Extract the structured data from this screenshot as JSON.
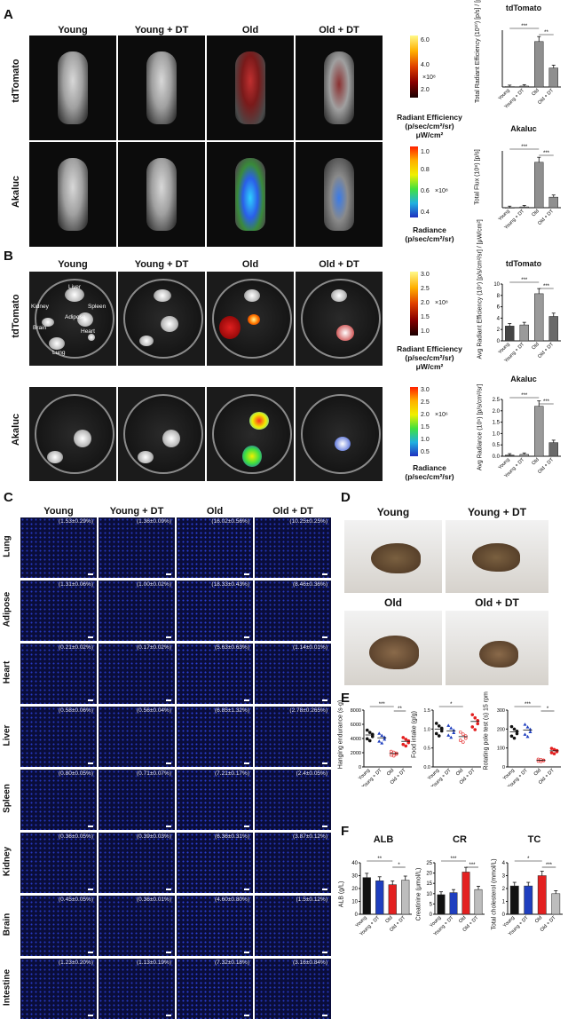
{
  "panels": [
    "A",
    "B",
    "C",
    "D",
    "E",
    "F"
  ],
  "groups": [
    "Young",
    "Young + DT",
    "Old",
    "Old + DT"
  ],
  "panel_A": {
    "rows": [
      "tdTomato",
      "Akaluc"
    ],
    "scale1": {
      "ticks": [
        "6.0",
        "4.0",
        "2.0"
      ],
      "exp": "×10⁸",
      "caption1": "Radiant Efficiency",
      "caption2": "(p/sec/cm²/sr)",
      "caption3": "μW/cm²"
    },
    "scale2": {
      "ticks": [
        "1.0",
        "0.8",
        "0.6",
        "0.4"
      ],
      "exp": "×10⁸",
      "caption1": "Radiance",
      "caption2": "(p/sec/cm²/sr)"
    },
    "chart1": {
      "title": "tdTomato",
      "ylabel": "Total Radiant Efficiency (10¹⁰) [p/s] / [μW/cm²]",
      "sig": [
        "***",
        "**"
      ]
    },
    "chart2": {
      "title": "Akaluc",
      "ylabel": "Total Flux (10⁸) [p/s]",
      "sig": [
        "***",
        "***"
      ]
    }
  },
  "panel_B": {
    "rows": [
      "tdTomato",
      "Akaluc"
    ],
    "organs": [
      "Liver",
      "Kidney",
      "Spleen",
      "Adipose",
      "Brain",
      "Heart",
      "Lung"
    ],
    "scale1": {
      "ticks": [
        "3.0",
        "2.5",
        "2.0",
        "1.5",
        "1.0"
      ],
      "exp": "×10⁸",
      "caption1": "Radiant Efficiency",
      "caption2": "(p/sec/cm²/sr)",
      "caption3": "μW/cm²"
    },
    "scale2": {
      "ticks": [
        "3.0",
        "2.5",
        "2.0",
        "1.5",
        "1.0",
        "0.5"
      ],
      "exp": "×10⁶",
      "caption1": "Radiance",
      "caption2": "(p/sec/cm²/sr)"
    },
    "chart1": {
      "title": "tdTomato",
      "ylabel": "Avg Radiant Efficiency (10⁷) [p/s/cm²/sr] / [μW/cm²]",
      "sig": [
        "***",
        "***"
      ]
    },
    "chart2": {
      "title": "Akaluc",
      "ylabel": "Avg Radiance (10⁵) [p/s/cm²/sr]",
      "sig": [
        "***",
        "***"
      ]
    }
  },
  "panel_C": {
    "tissues": [
      "Lung",
      "Adipose",
      "Heart",
      "Liver",
      "Spleen",
      "Kidney",
      "Brain",
      "Intestine"
    ],
    "values": [
      [
        "(1.53±0.29%)",
        "(1.36±0.09%)",
        "(16.02±0.56%)",
        "(10.25±0.25%)"
      ],
      [
        "(1.31±0.06%)",
        "(1.00±0.02%)",
        "(18.33±0.43%)",
        "(8.46±0.36%)"
      ],
      [
        "(0.21±0.02%)",
        "(0.17±0.02%)",
        "(5.63±0.63%)",
        "(1.14±0.01%)"
      ],
      [
        "(0.58±0.06%)",
        "(0.56±0.04%)",
        "(6.85±1.32%)",
        "(2.78±0.265%)"
      ],
      [
        "(0.80±0.05%)",
        "(0.71±0.07%)",
        "(7.21±0.17%)",
        "(2.4±0.05%)"
      ],
      [
        "(0.36±0.05%)",
        "(0.39±0.03%)",
        "(6.36±0.31%)",
        "(3.87±0.12%)"
      ],
      [
        "(0.45±0.05%)",
        "(0.36±0.01%)",
        "(4.60±0.80%)",
        "(1.5±0.12%)"
      ],
      [
        "(1.23±0.20%)",
        "(1.13±0.19%)",
        "(7.32±0.18%)",
        "(3.16±0.84%)"
      ]
    ]
  },
  "panel_D": {
    "labels": [
      "Young",
      "Young + DT",
      "Old",
      "Old + DT"
    ]
  },
  "panel_E": {
    "charts": [
      {
        "ylabel": "Hanging endurance (s·g)",
        "sig": [
          "***",
          "**"
        ]
      },
      {
        "ylabel": "Food intake (g/g)",
        "sig": [
          "*"
        ]
      },
      {
        "ylabel": "Rotating pole test (s) 15 rpm",
        "sig": [
          "***",
          "*"
        ]
      }
    ]
  },
  "panel_F": {
    "charts": [
      {
        "title": "ALB",
        "ylabel": "ALB (g/L)",
        "ticks": [
          "40",
          "30",
          "20",
          "10",
          "0"
        ],
        "sig": [
          "**",
          "*"
        ]
      },
      {
        "title": "CR",
        "ylabel": "Creatinine (μmol/L)",
        "ticks": [
          "25",
          "20",
          "15",
          "10",
          "5",
          "0"
        ],
        "sig": [
          "***",
          "***"
        ]
      },
      {
        "title": "TC",
        "ylabel": "Total cholesterol (mmol/L)",
        "ticks": [
          "4",
          "3",
          "2",
          "1",
          "0"
        ],
        "sig": [
          "*",
          "***"
        ]
      }
    ]
  },
  "chart_data": [
    {
      "type": "bar",
      "panel": "A-tdTomato",
      "categories": [
        "Young",
        "Young + DT",
        "Old",
        "Old + DT"
      ],
      "values": [
        0.1,
        0.2,
        9.8,
        4.1
      ],
      "title": "tdTomato",
      "ylabel": "Total Radiant Efficiency (10¹⁰) [p/s] / [μW/cm²]"
    },
    {
      "type": "bar",
      "panel": "A-Akaluc",
      "categories": [
        "Young",
        "Young + DT",
        "Old",
        "Old + DT"
      ],
      "values": [
        0.1,
        0.4,
        22.0,
        5.1
      ],
      "title": "Akaluc",
      "ylabel": "Total Flux (10⁸) [p/s]"
    },
    {
      "type": "bar",
      "panel": "B-tdTomato",
      "categories": [
        "Young",
        "Young + DT",
        "Old",
        "Old + DT"
      ],
      "values": [
        2.6,
        2.8,
        8.3,
        4.3
      ],
      "ylim": [
        0,
        10
      ],
      "yticks": [
        "10",
        "8",
        "6",
        "4",
        "2",
        "0"
      ],
      "title": "tdTomato",
      "ylabel": "Avg Radiant Efficiency (10⁷) [p/s/cm²/sr] / [μW/cm²]"
    },
    {
      "type": "bar",
      "panel": "B-Akaluc",
      "categories": [
        "Young",
        "Young + DT",
        "Old",
        "Old + DT"
      ],
      "values": [
        0.05,
        0.08,
        2.2,
        0.6
      ],
      "ylim": [
        0,
        2.5
      ],
      "yticks": [
        "2.5",
        "2.0",
        "1.5",
        "1.0",
        "0.5",
        "0.0"
      ],
      "title": "Akaluc",
      "ylabel": "Avg Radiance (10⁵) [p/s/cm²/sr]"
    },
    {
      "type": "scatter",
      "panel": "E-Hanging",
      "categories": [
        "Young",
        "Young + DT",
        "Old",
        "Old + DT"
      ],
      "values": [
        4500,
        4100,
        1900,
        3600
      ],
      "yticks": [
        "8000",
        "6000",
        "4000",
        "2000",
        "0"
      ],
      "ylim": [
        0,
        8000
      ],
      "ylabel": "Hanging endurance (s·g)"
    },
    {
      "type": "scatter",
      "panel": "E-Food",
      "categories": [
        "Young",
        "Young + DT",
        "Old",
        "Old + DT"
      ],
      "values": [
        1.0,
        0.95,
        0.8,
        1.2
      ],
      "yticks": [
        "1.5",
        "1.0",
        "0.5",
        "0.0"
      ],
      "ylim": [
        0,
        1.5
      ],
      "ylabel": "Food intake (g/g)"
    },
    {
      "type": "scatter",
      "panel": "E-Pole",
      "categories": [
        "Young",
        "Young + DT",
        "Old",
        "Old + DT"
      ],
      "values": [
        185,
        195,
        35,
        85
      ],
      "yticks": [
        "300",
        "200",
        "100",
        "0"
      ],
      "ylim": [
        0,
        300
      ],
      "ylabel": "Rotating pole test (s) 15 rpm"
    },
    {
      "type": "bar",
      "panel": "F-ALB",
      "categories": [
        "Young",
        "Young + DT",
        "Old",
        "Old + DT"
      ],
      "values": [
        28.5,
        26,
        23,
        26.5
      ],
      "ylim": [
        0,
        40
      ],
      "title": "ALB",
      "ylabel": "ALB (g/L)"
    },
    {
      "type": "bar",
      "panel": "F-CR",
      "categories": [
        "Young",
        "Young + DT",
        "Old",
        "Old + DT"
      ],
      "values": [
        9.5,
        10.5,
        20.5,
        12
      ],
      "ylim": [
        0,
        25
      ],
      "title": "CR",
      "ylabel": "Creatinine (μmol/L)"
    },
    {
      "type": "bar",
      "panel": "F-TC",
      "categories": [
        "Young",
        "Young + DT",
        "Old",
        "Old + DT"
      ],
      "values": [
        2.2,
        2.2,
        3.0,
        1.6
      ],
      "ylim": [
        0,
        4
      ],
      "title": "TC",
      "ylabel": "Total cholesterol (mmol/L)"
    }
  ],
  "colors": {
    "bar_black": "#111111",
    "bar_blue": "#1f3fbf",
    "bar_red": "#e32020",
    "bar_grey": "#bdbdbd",
    "bar_a_grey": "#8f8f8f",
    "micro_bg": "#0a0d3a"
  }
}
